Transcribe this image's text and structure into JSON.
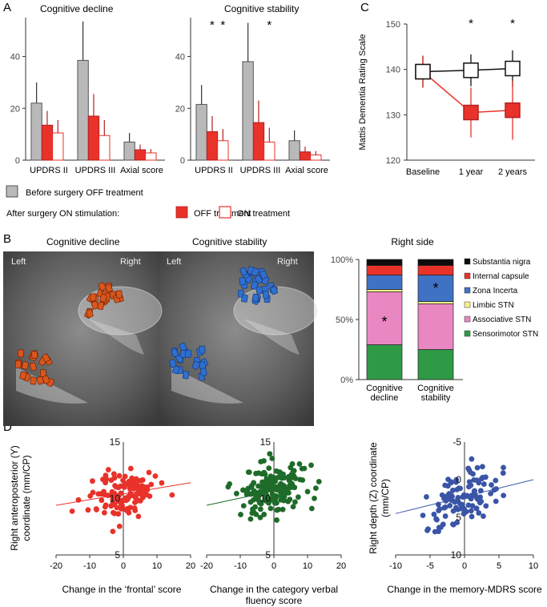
{
  "panels": {
    "A": "A",
    "B": "B",
    "C": "C",
    "D": "D"
  },
  "colors": {
    "gray": "#b9b9b9",
    "red": "#e8322a",
    "dark_red": "#b42020",
    "green_scatter": "#1f6b2a",
    "blue_scatter": "#3a55a6",
    "line_red": "#e8322a"
  },
  "legend_A": {
    "before": "Before surgery OFF treatment",
    "after_prefix": "After surgery ON stimulation:",
    "off": "OFF treatment",
    "on": "ON treatment"
  },
  "imaging": {
    "left_title": "Cognitive decline",
    "right_title": "Cognitive stability",
    "left_label": "Left",
    "right_label": "Right"
  },
  "chart_data": [
    {
      "id": "A1",
      "type": "bar",
      "title": "Cognitive decline",
      "categories": [
        "UPDRS II",
        "UPDRS III",
        "Axial score"
      ],
      "ylim": [
        0,
        55
      ],
      "yticks": [
        0,
        20,
        40
      ],
      "series": [
        {
          "name": "Before surgery OFF treatment",
          "values": [
            22,
            38.5,
            7
          ],
          "err": [
            8,
            15,
            3.5
          ]
        },
        {
          "name": "OFF treatment",
          "values": [
            13.5,
            17,
            4
          ],
          "err": [
            5.5,
            8.5,
            2
          ]
        },
        {
          "name": "ON treatment",
          "values": [
            10.5,
            9.5,
            2.8
          ],
          "err": [
            5,
            6,
            1.5
          ]
        }
      ],
      "annotations": []
    },
    {
      "id": "A2",
      "type": "bar",
      "title": "Cognitive stability",
      "categories": [
        "UPDRS II",
        "UPDRS III",
        "Axial score"
      ],
      "ylim": [
        0,
        55
      ],
      "yticks": [
        0,
        20,
        40
      ],
      "series": [
        {
          "name": "Before surgery OFF treatment",
          "values": [
            21.5,
            38,
            7.5
          ],
          "err": [
            7.5,
            15,
            4
          ]
        },
        {
          "name": "OFF treatment",
          "values": [
            11,
            14.5,
            3.2
          ],
          "err": [
            6,
            8.5,
            2
          ]
        },
        {
          "name": "ON treatment",
          "values": [
            7.5,
            7,
            2
          ],
          "err": [
            4.5,
            5.5,
            1.5
          ]
        }
      ],
      "annotations": [
        "*",
        "*",
        "*"
      ]
    },
    {
      "id": "C",
      "type": "line",
      "categories": [
        "Baseline",
        "1 year",
        "2 years"
      ],
      "ylabel": "Mattis Dementia Rating Scale",
      "ylim": [
        120,
        150
      ],
      "yticks": [
        120,
        130,
        140,
        150
      ],
      "series": [
        {
          "name": "Cognitive stability",
          "values": [
            139.5,
            139.8,
            140.2
          ],
          "err": [
            3.5,
            3.5,
            4
          ]
        },
        {
          "name": "Cognitive decline",
          "values": [
            139.5,
            130.5,
            131
          ],
          "err": [
            3.5,
            5.5,
            6.5
          ]
        }
      ],
      "annotations": [
        "*",
        "*"
      ]
    },
    {
      "id": "B",
      "type": "bar",
      "title": "Right side",
      "stacked": true,
      "categories": [
        "Cognitive decline",
        "Cognitive stability"
      ],
      "yticks": [
        "0%",
        "50%",
        "100%"
      ],
      "series": [
        {
          "name": "Sensorimotor STN",
          "values": [
            29,
            25
          ]
        },
        {
          "name": "Associative STN",
          "values": [
            44,
            38
          ]
        },
        {
          "name": "Limbic STN",
          "values": [
            2,
            2
          ]
        },
        {
          "name": "Zona Incerta",
          "values": [
            12,
            22
          ]
        },
        {
          "name": "Internal capsule",
          "values": [
            8,
            8
          ]
        },
        {
          "name": "Substantia nigra",
          "values": [
            5,
            5
          ]
        }
      ],
      "annotations": [
        "*",
        "*"
      ]
    },
    {
      "id": "D1",
      "type": "scatter",
      "xlabel": "Change in the ‘frontal’ score",
      "ylabel": "Right anteroposterior (Y) coordinate (mm/CP)",
      "xlim": [
        -20,
        20
      ],
      "ylim": [
        5,
        15
      ],
      "xticks": [
        -20,
        -10,
        0,
        10,
        20
      ],
      "yticks": [
        5,
        10,
        15
      ],
      "trend": {
        "x": [
          -20,
          20
        ],
        "y": [
          9.4,
          11.4
        ]
      },
      "n_points": 130
    },
    {
      "id": "D2",
      "type": "scatter",
      "xlabel": "Change in the category verbal fluency score",
      "xlim": [
        -20,
        20
      ],
      "ylim": [
        5,
        15
      ],
      "xticks": [
        -20,
        -10,
        0,
        10,
        20
      ],
      "yticks": [
        5,
        10,
        15
      ],
      "trend": {
        "x": [
          -20,
          5
        ],
        "y": [
          9.4,
          11.0
        ]
      },
      "n_points": 170
    },
    {
      "id": "D3",
      "type": "scatter",
      "xlabel": "Change in the memory-MDRS score",
      "ylabel": "Right depth (Z) coordinate (mm/CP)",
      "xlim": [
        -10,
        10
      ],
      "ylim": [
        10,
        -5
      ],
      "xticks": [
        -10,
        -5,
        0,
        5,
        10
      ],
      "yticks": [
        -5,
        0,
        5,
        10
      ],
      "trend": {
        "x": [
          -10,
          10
        ],
        "y": [
          4.5,
          0
        ]
      },
      "n_points": 110
    }
  ]
}
